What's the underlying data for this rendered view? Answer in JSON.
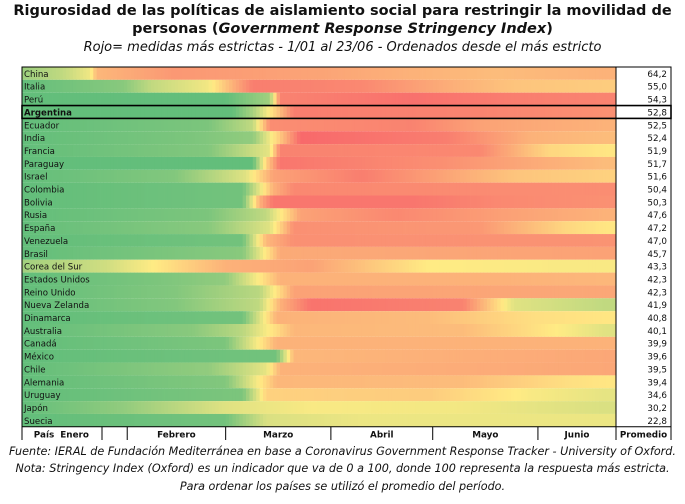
{
  "title_line1": "Rigurosidad de las políticas de aislamiento social para restringir la movilidad de",
  "title_line2_pre": "personas (",
  "title_line2_em": "Government Response Stringency Index",
  "title_line2_post": ")",
  "subtitle": "Rojo= medidas más estrictas - 1/01 al 23/06 - Ordenados desde el más estricto",
  "notes": [
    "Fuente: IERAL de Fundación Mediterránea en base a Coronavirus Government Response Tracker - University of Oxford.",
    "Nota: Stringency Index (Oxford) es un indicador que va de 0 a 100, donde 100 representa la respuesta más estricta.",
    "Para ordenar los países se utilizó el promedio del período."
  ],
  "colors": {
    "scale": [
      "#63be7b",
      "#ffeb84",
      "#f8696b"
    ],
    "grid": "#000000",
    "highlight_border": "#000000"
  },
  "chart_data": {
    "type": "heatmap",
    "x_header": "País",
    "value_header": "Promedio",
    "months": [
      "Enero",
      "Febrero",
      "Marzo",
      "Abril",
      "Mayo",
      "Junio"
    ],
    "highlighted": "Argentina",
    "color_range": [
      0,
      100
    ],
    "rows": [
      {
        "country": "China",
        "avg": "64,2",
        "profile": [
          [
            0,
            18
          ],
          [
            12,
            30
          ],
          [
            20,
            45
          ],
          [
            22,
            70
          ],
          [
            45,
            82
          ],
          [
            90,
            77
          ],
          [
            115,
            72
          ],
          [
            140,
            68
          ],
          [
            172,
            72
          ]
        ]
      },
      {
        "country": "Italia",
        "avg": "55,0",
        "profile": [
          [
            0,
            0
          ],
          [
            30,
            12
          ],
          [
            38,
            30
          ],
          [
            55,
            46
          ],
          [
            62,
            72
          ],
          [
            68,
            92
          ],
          [
            100,
            88
          ],
          [
            125,
            74
          ],
          [
            145,
            65
          ],
          [
            172,
            62
          ]
        ]
      },
      {
        "country": "Perú",
        "avg": "54,3",
        "profile": [
          [
            0,
            0
          ],
          [
            60,
            0
          ],
          [
            73,
            20
          ],
          [
            76,
            90
          ],
          [
            115,
            97
          ],
          [
            145,
            92
          ],
          [
            172,
            90
          ]
        ]
      },
      {
        "country": "Argentina",
        "avg": "52,8",
        "profile": [
          [
            0,
            0
          ],
          [
            62,
            0
          ],
          [
            68,
            22
          ],
          [
            75,
            62
          ],
          [
            80,
            92
          ],
          [
            130,
            90
          ],
          [
            150,
            88
          ],
          [
            172,
            85
          ]
        ]
      },
      {
        "country": "Ecuador",
        "avg": "52,5",
        "profile": [
          [
            0,
            0
          ],
          [
            55,
            8
          ],
          [
            68,
            30
          ],
          [
            73,
            86
          ],
          [
            115,
            90
          ],
          [
            135,
            78
          ],
          [
            172,
            72
          ]
        ]
      },
      {
        "country": "India",
        "avg": "52,4",
        "profile": [
          [
            0,
            0
          ],
          [
            50,
            8
          ],
          [
            68,
            15
          ],
          [
            82,
            100
          ],
          [
            125,
            92
          ],
          [
            150,
            72
          ],
          [
            172,
            68
          ]
        ]
      },
      {
        "country": "Francia",
        "avg": "51,9",
        "profile": [
          [
            0,
            0
          ],
          [
            55,
            10
          ],
          [
            73,
            42
          ],
          [
            76,
            90
          ],
          [
            135,
            88
          ],
          [
            155,
            58
          ],
          [
            172,
            52
          ]
        ]
      },
      {
        "country": "Paraguay",
        "avg": "51,7",
        "profile": [
          [
            0,
            0
          ],
          [
            68,
            0
          ],
          [
            72,
            60
          ],
          [
            76,
            95
          ],
          [
            125,
            85
          ],
          [
            150,
            75
          ],
          [
            172,
            68
          ]
        ]
      },
      {
        "country": "Israel",
        "avg": "51,6",
        "profile": [
          [
            0,
            0
          ],
          [
            45,
            10
          ],
          [
            66,
            40
          ],
          [
            74,
            78
          ],
          [
            100,
            92
          ],
          [
            120,
            80
          ],
          [
            145,
            65
          ],
          [
            172,
            60
          ]
        ]
      },
      {
        "country": "Colombia",
        "avg": "50,4",
        "profile": [
          [
            0,
            0
          ],
          [
            65,
            5
          ],
          [
            74,
            72
          ],
          [
            80,
            88
          ],
          [
            172,
            86
          ]
        ]
      },
      {
        "country": "Bolivia",
        "avg": "50,3",
        "profile": [
          [
            0,
            0
          ],
          [
            65,
            5
          ],
          [
            70,
            72
          ],
          [
            74,
            95
          ],
          [
            115,
            95
          ],
          [
            140,
            88
          ],
          [
            172,
            85
          ]
        ]
      },
      {
        "country": "Rusia",
        "avg": "47,6",
        "profile": [
          [
            0,
            0
          ],
          [
            55,
            8
          ],
          [
            72,
            30
          ],
          [
            82,
            78
          ],
          [
            110,
            88
          ],
          [
            145,
            78
          ],
          [
            172,
            72
          ]
        ]
      },
      {
        "country": "España",
        "avg": "47,2",
        "profile": [
          [
            0,
            0
          ],
          [
            55,
            12
          ],
          [
            73,
            40
          ],
          [
            80,
            85
          ],
          [
            135,
            82
          ],
          [
            160,
            58
          ],
          [
            172,
            52
          ]
        ]
      },
      {
        "country": "Venezuela",
        "avg": "47,0",
        "profile": [
          [
            0,
            0
          ],
          [
            65,
            5
          ],
          [
            72,
            70
          ],
          [
            80,
            85
          ],
          [
            172,
            84
          ]
        ]
      },
      {
        "country": "Brasil",
        "avg": "45,7",
        "profile": [
          [
            0,
            0
          ],
          [
            65,
            12
          ],
          [
            76,
            75
          ],
          [
            172,
            78
          ]
        ]
      },
      {
        "country": "Corea del Sur",
        "avg": "43,3",
        "profile": [
          [
            0,
            20
          ],
          [
            25,
            35
          ],
          [
            48,
            60
          ],
          [
            60,
            72
          ],
          [
            85,
            78
          ],
          [
            120,
            50
          ],
          [
            160,
            48
          ],
          [
            172,
            48
          ]
        ]
      },
      {
        "country": "Estados Unidos",
        "avg": "42,3",
        "profile": [
          [
            0,
            0
          ],
          [
            40,
            8
          ],
          [
            60,
            15
          ],
          [
            76,
            72
          ],
          [
            140,
            72
          ],
          [
            172,
            70
          ]
        ]
      },
      {
        "country": "Reino Unido",
        "avg": "42,3",
        "profile": [
          [
            0,
            0
          ],
          [
            45,
            10
          ],
          [
            70,
            28
          ],
          [
            80,
            78
          ],
          [
            172,
            76
          ]
        ]
      },
      {
        "country": "Nueva Zelanda",
        "avg": "41,9",
        "profile": [
          [
            0,
            0
          ],
          [
            45,
            10
          ],
          [
            70,
            30
          ],
          [
            76,
            72
          ],
          [
            85,
            96
          ],
          [
            130,
            90
          ],
          [
            145,
            40
          ],
          [
            172,
            30
          ]
        ]
      },
      {
        "country": "Dinamarca",
        "avg": "40,8",
        "profile": [
          [
            0,
            0
          ],
          [
            65,
            5
          ],
          [
            75,
            72
          ],
          [
            120,
            68
          ],
          [
            150,
            55
          ],
          [
            172,
            52
          ]
        ]
      },
      {
        "country": "Australia",
        "avg": "40,1",
        "profile": [
          [
            0,
            0
          ],
          [
            50,
            12
          ],
          [
            65,
            28
          ],
          [
            80,
            70
          ],
          [
            130,
            68
          ],
          [
            150,
            55
          ],
          [
            165,
            45
          ],
          [
            172,
            40
          ]
        ]
      },
      {
        "country": "Canadá",
        "avg": "39,9",
        "profile": [
          [
            0,
            0
          ],
          [
            60,
            8
          ],
          [
            75,
            72
          ],
          [
            172,
            72
          ]
        ]
      },
      {
        "country": "México",
        "avg": "39,6",
        "profile": [
          [
            0,
            0
          ],
          [
            75,
            5
          ],
          [
            80,
            70
          ],
          [
            172,
            76
          ]
        ]
      },
      {
        "country": "Chile",
        "avg": "39,5",
        "profile": [
          [
            0,
            0
          ],
          [
            55,
            15
          ],
          [
            72,
            42
          ],
          [
            76,
            72
          ],
          [
            172,
            76
          ]
        ]
      },
      {
        "country": "Alemania",
        "avg": "39,4",
        "profile": [
          [
            0,
            0
          ],
          [
            60,
            10
          ],
          [
            75,
            70
          ],
          [
            130,
            68
          ],
          [
            160,
            55
          ],
          [
            172,
            52
          ]
        ]
      },
      {
        "country": "Uruguay",
        "avg": "34,6",
        "profile": [
          [
            0,
            0
          ],
          [
            65,
            8
          ],
          [
            72,
            60
          ],
          [
            120,
            62
          ],
          [
            150,
            48
          ],
          [
            172,
            42
          ]
        ]
      },
      {
        "country": "Japón",
        "avg": "30,2",
        "profile": [
          [
            0,
            0
          ],
          [
            30,
            15
          ],
          [
            60,
            40
          ],
          [
            85,
            48
          ],
          [
            130,
            46
          ],
          [
            160,
            40
          ],
          [
            172,
            38
          ]
        ]
      },
      {
        "country": "Suecia",
        "avg": "22,8",
        "profile": [
          [
            0,
            0
          ],
          [
            60,
            5
          ],
          [
            72,
            38
          ],
          [
            100,
            44
          ],
          [
            172,
            44
          ]
        ]
      }
    ]
  }
}
